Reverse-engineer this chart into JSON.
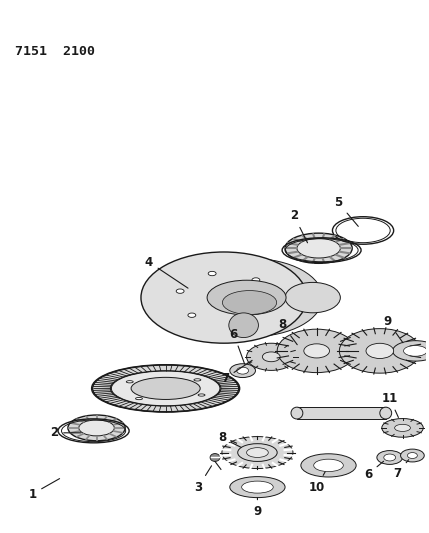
{
  "title_code": "7151  2100",
  "bg_color": "#ffffff",
  "line_color": "#1a1a1a",
  "fig_width": 4.29,
  "fig_height": 5.33,
  "dpi": 100
}
